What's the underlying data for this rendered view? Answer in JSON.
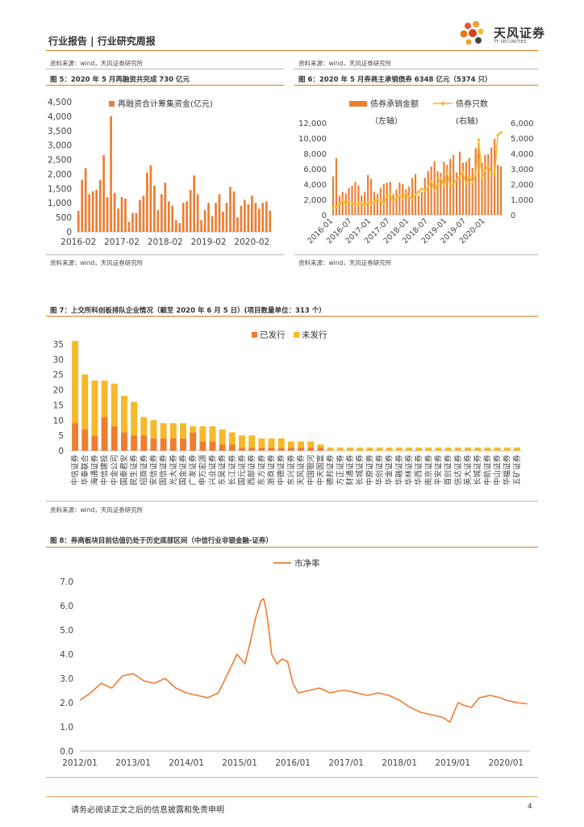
{
  "header": {
    "title": "行业报告 | 行业研究周报",
    "logo_cn": "天风证券",
    "logo_en": "TF SECURITIES",
    "source_top_left": "资料来源：wind，天风证券研究所",
    "source_top_right": "资料来源：wind，天风证券研究所"
  },
  "colors": {
    "orange": "#ed7d31",
    "gold": "#f5b92a",
    "accent": "#e07a1f"
  },
  "fig5": {
    "title": "图 5：2020 年 5 月再融资共完成 730 亿元",
    "source": "资料来源：wind，天风证券研究所",
    "chart_data": {
      "type": "bar",
      "title": "2020 年 5 月再融资共完成 730 亿元",
      "legend": "再融资合计筹集资金(亿元)",
      "yticks": [
        "0",
        "500",
        "1,000",
        "1,500",
        "2,000",
        "2,500",
        "3,000",
        "3,500",
        "4,000",
        "4,500"
      ],
      "ylim": [
        0,
        4500
      ],
      "xticks": [
        "2016-02",
        "2017-02",
        "2018-02",
        "2019-02",
        "2020-02"
      ],
      "values": [
        730,
        1800,
        2200,
        1300,
        1400,
        1450,
        1800,
        2650,
        1200,
        4000,
        1350,
        800,
        1200,
        1150,
        350,
        650,
        650,
        1100,
        1250,
        2050,
        2300,
        1600,
        750,
        1300,
        1700,
        1050,
        900,
        400,
        300,
        1000,
        1050,
        1450,
        1950,
        1300,
        400,
        750,
        1000,
        550,
        1000,
        1300,
        700,
        1000,
        1550,
        1400,
        500,
        900,
        1100,
        950,
        1250,
        1000,
        800,
        1000,
        1050,
        730
      ]
    }
  },
  "fig6": {
    "title": "图 6：2020 年 5 月券商主承销债券 6348 亿元（5374 只）",
    "source": "资料来源：wind，天风证券研究所",
    "chart_data": {
      "type": "bar+line",
      "series": [
        {
          "name": "债券承销金额",
          "axis": "（左轴）",
          "type": "bar",
          "values": [
            5000,
            7400,
            2500,
            3000,
            2800,
            3500,
            3800,
            4300,
            3800,
            2500,
            3000,
            5200,
            4700,
            3000,
            2700,
            3500,
            4000,
            4200,
            4300,
            2700,
            3300,
            4200,
            4000,
            3300,
            3700,
            4800,
            5300,
            2500,
            3000,
            4800,
            5700,
            6300,
            7000,
            5700,
            5500,
            6900,
            6500,
            7300,
            7800,
            5500,
            8200,
            6800,
            6900,
            7400,
            6100,
            8700,
            9000,
            6800,
            7800,
            7900,
            8800,
            9900,
            6500,
            6348
          ]
        },
        {
          "name": "债券只数",
          "axis": "(右轴)",
          "type": "line",
          "values": [
            500,
            550,
            680,
            900,
            700,
            850,
            800,
            650,
            700,
            750,
            600,
            800,
            700,
            850,
            1000,
            900,
            750,
            1200,
            1300,
            900,
            1100,
            1250,
            1100,
            1400,
            1200,
            1050,
            1300,
            1500,
            1700,
            1600,
            1800,
            2200,
            1600,
            2000,
            2400,
            1900,
            2800,
            1900,
            2000,
            2300,
            2500,
            2800,
            2000,
            2500,
            2100,
            2600,
            4900,
            2400,
            2900,
            3200,
            2700,
            2600,
            5200,
            5374
          ]
        }
      ],
      "yleft_ticks": [
        "0",
        "2,000",
        "4,000",
        "6,000",
        "8,000",
        "10,000",
        "12,000"
      ],
      "yleft_lim": [
        0,
        12000
      ],
      "yright_ticks": [
        "0",
        "1,000",
        "2,000",
        "3,000",
        "4,000",
        "5,000",
        "6,000"
      ],
      "yright_lim": [
        0,
        6000
      ],
      "xticks": [
        "2016-01",
        "2016-07",
        "2017-01",
        "2017-07",
        "2018-01",
        "2018-07",
        "2019-01",
        "2019-07",
        "2020-01"
      ]
    }
  },
  "fig7": {
    "title": "图 7：上交所科创板排队企业情况（截至 2020 年 6 月 5 日）(项目数量单位：313 个）",
    "source": "资料来源：wind，天风证券研究所",
    "chart_data": {
      "type": "stacked-bar",
      "legend": [
        "已发行",
        "未发行"
      ],
      "yticks": [
        "0",
        "5",
        "10",
        "15",
        "20",
        "25",
        "30",
        "35"
      ],
      "ylim": [
        0,
        35
      ],
      "categories": [
        "中信证券",
        "华泰联合",
        "海通证券",
        "中信建投",
        "中金公司",
        "国泰君安",
        "民生证券",
        "招商证券",
        "安信证券",
        "国信证券",
        "光大证券",
        "国金证券",
        "广发证券",
        "申万宏源",
        "兴业证券",
        "东吴证券",
        "长江证券",
        "国元证券",
        "西部证券",
        "东方证券",
        "浙商证券",
        "中德证券",
        "东兴证券",
        "天风证券",
        "中国银河",
        "中天国富",
        "德邦证券",
        "方正证券",
        "财通证券",
        "长城证券",
        "中原证券",
        "华创证券",
        "华金证券",
        "华融证券",
        "华林证券",
        "华西证券",
        "南京证券",
        "平安证券",
        "首创证券",
        "信达证券",
        "英大证券",
        "长城证券",
        "中航证券",
        "中山证券",
        "华福证券",
        "五矿证券"
      ],
      "series": [
        {
          "name": "已发行",
          "values": [
            9,
            7,
            5,
            11,
            8,
            6,
            5,
            5,
            4,
            4,
            4,
            4,
            6,
            3,
            3,
            2,
            2,
            1,
            1,
            1,
            1,
            1,
            1,
            1,
            1,
            1,
            0,
            0,
            0,
            0,
            0,
            0,
            0,
            0,
            0,
            0,
            0,
            0,
            0,
            0,
            0,
            0,
            0,
            0,
            0,
            0
          ]
        },
        {
          "name": "未发行",
          "values": [
            27,
            18,
            18,
            12,
            14,
            12,
            11,
            6,
            6,
            5,
            5,
            5,
            2,
            5,
            5,
            5,
            4,
            4,
            4,
            3,
            3,
            3,
            2,
            2,
            2,
            1,
            1,
            1,
            1,
            1,
            1,
            1,
            1,
            1,
            1,
            1,
            1,
            1,
            1,
            1,
            1,
            1,
            1,
            1,
            1,
            1
          ]
        }
      ]
    }
  },
  "fig8": {
    "title": "图 8：券商板块目前估值仍处于历史底部区间（中信行业非银金融-证券）",
    "chart_data": {
      "type": "line",
      "legend": "市净率",
      "yticks": [
        "0.0",
        "1.0",
        "2.0",
        "3.0",
        "4.0",
        "5.0",
        "6.0",
        "7.0"
      ],
      "ylim": [
        0,
        7
      ],
      "xticks": [
        "2012/01",
        "2013/01",
        "2014/01",
        "2015/01",
        "2016/01",
        "2017/01",
        "2018/01",
        "2019/01",
        "2020/01"
      ],
      "x": [
        2012.0,
        2012.2,
        2012.4,
        2012.6,
        2012.8,
        2013.0,
        2013.2,
        2013.4,
        2013.6,
        2013.8,
        2014.0,
        2014.2,
        2014.4,
        2014.6,
        2014.8,
        2014.95,
        2015.1,
        2015.2,
        2015.3,
        2015.4,
        2015.45,
        2015.5,
        2015.55,
        2015.6,
        2015.7,
        2015.8,
        2015.9,
        2016.0,
        2016.1,
        2016.3,
        2016.5,
        2016.7,
        2016.9,
        2017.0,
        2017.2,
        2017.4,
        2017.6,
        2017.8,
        2018.0,
        2018.2,
        2018.4,
        2018.6,
        2018.8,
        2018.95,
        2019.1,
        2019.2,
        2019.35,
        2019.5,
        2019.7,
        2019.9,
        2020.0,
        2020.2,
        2020.4
      ],
      "values": [
        2.1,
        2.4,
        2.8,
        2.6,
        3.1,
        3.2,
        2.9,
        2.8,
        3.0,
        2.6,
        2.4,
        2.3,
        2.2,
        2.4,
        3.3,
        4.0,
        3.6,
        4.5,
        5.5,
        6.2,
        6.3,
        5.8,
        5.0,
        4.0,
        3.6,
        3.8,
        3.7,
        2.8,
        2.4,
        2.5,
        2.6,
        2.4,
        2.5,
        2.5,
        2.4,
        2.3,
        2.4,
        2.3,
        2.1,
        1.8,
        1.6,
        1.5,
        1.4,
        1.2,
        2.0,
        1.9,
        1.8,
        2.2,
        2.3,
        2.2,
        2.1,
        2.0,
        1.95
      ]
    }
  },
  "footer": {
    "disclaimer": "请务必阅读正文之后的信息披露和免责申明",
    "page": "4"
  }
}
